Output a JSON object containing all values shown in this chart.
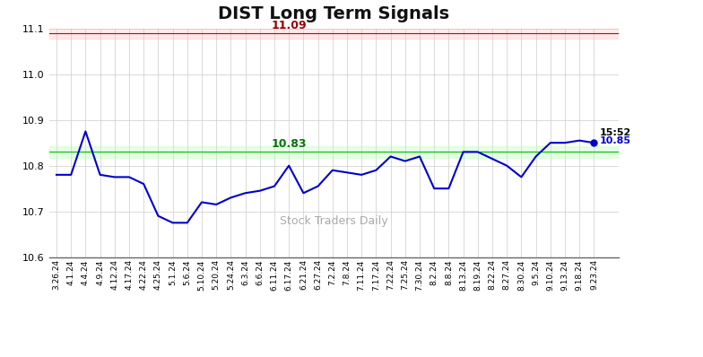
{
  "title": "DIST Long Term Signals",
  "watermark": "Stock Traders Daily",
  "red_line": 11.09,
  "green_line": 10.83,
  "red_line_label": "11.09",
  "green_line_label": "10.83",
  "last_time": "15:52",
  "last_price": "10.85",
  "ylim": [
    10.6,
    11.1
  ],
  "yticks": [
    10.6,
    10.7,
    10.8,
    10.9,
    11.0,
    11.1
  ],
  "x_labels": [
    "3.26.24",
    "4.1.24",
    "4.4.24",
    "4.9.24",
    "4.12.24",
    "4.17.24",
    "4.22.24",
    "4.25.24",
    "5.1.24",
    "5.6.24",
    "5.10.24",
    "5.20.24",
    "5.24.24",
    "6.3.24",
    "6.6.24",
    "6.11.24",
    "6.17.24",
    "6.21.24",
    "6.27.24",
    "7.2.24",
    "7.8.24",
    "7.11.24",
    "7.17.24",
    "7.22.24",
    "7.25.24",
    "7.30.24",
    "8.2.24",
    "8.8.24",
    "8.13.24",
    "8.19.24",
    "8.22.24",
    "8.27.24",
    "8.30.24",
    "9.5.24",
    "9.10.24",
    "9.13.24",
    "9.18.24",
    "9.23.24"
  ],
  "y_values": [
    10.78,
    10.78,
    10.875,
    10.78,
    10.775,
    10.775,
    10.76,
    10.69,
    10.675,
    10.675,
    10.72,
    10.715,
    10.73,
    10.74,
    10.745,
    10.755,
    10.8,
    10.74,
    10.755,
    10.79,
    10.785,
    10.78,
    10.79,
    10.82,
    10.81,
    10.82,
    10.75,
    10.75,
    10.83,
    10.83,
    10.815,
    10.8,
    10.775,
    10.82,
    10.85,
    10.85,
    10.855,
    10.85
  ],
  "line_color": "#0000cc",
  "red_line_color": "#cc0000",
  "red_band_alpha": 0.25,
  "red_band_color": "#ffaaaa",
  "green_line_color": "#00bb00",
  "green_band_alpha": 0.3,
  "green_band_color": "#aaffaa",
  "background_color": "#ffffff",
  "grid_color": "#cccccc",
  "title_fontsize": 14,
  "watermark_color": "#aaaaaa",
  "red_label_color": "#990000",
  "green_label_color": "#007700"
}
